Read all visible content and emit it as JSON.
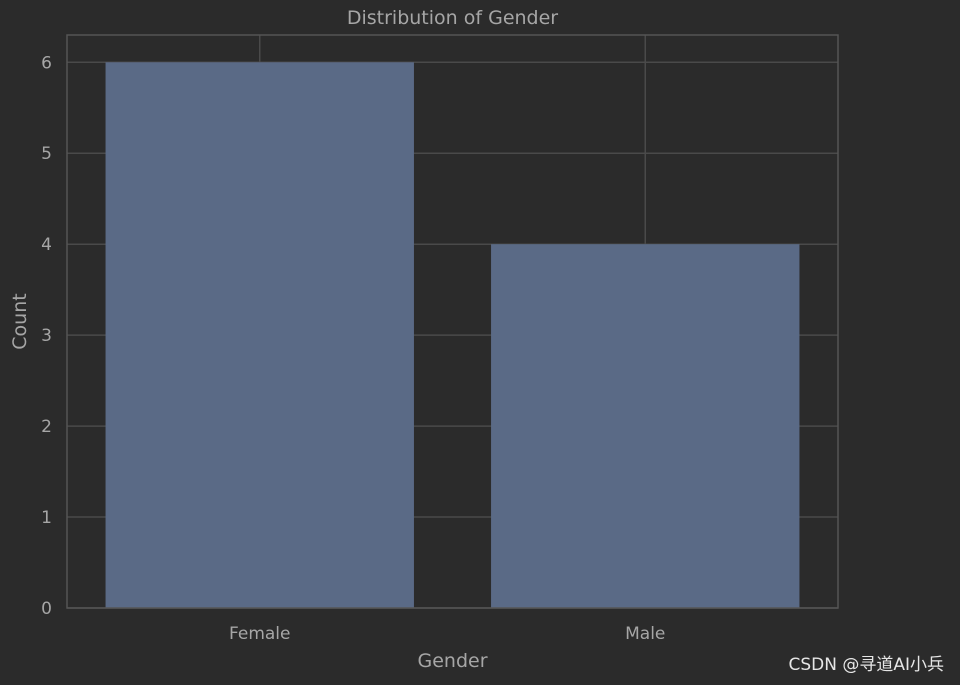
{
  "chart_data": {
    "type": "bar",
    "title": "Distribution of Gender",
    "xlabel": "Gender",
    "ylabel": "Count",
    "categories": [
      "Female",
      "Male"
    ],
    "values": [
      6,
      4
    ],
    "ylim": [
      0,
      6.3
    ],
    "yticks": [
      0,
      1,
      2,
      3,
      4,
      5,
      6
    ],
    "grid": true,
    "colors": {
      "background": "#2b2b2b",
      "bar": "#5a6a86",
      "grid": "#4a4a4a",
      "spine": "#555555",
      "text": "#a6a6a6"
    }
  },
  "watermark": "CSDN @寻道AI小兵"
}
